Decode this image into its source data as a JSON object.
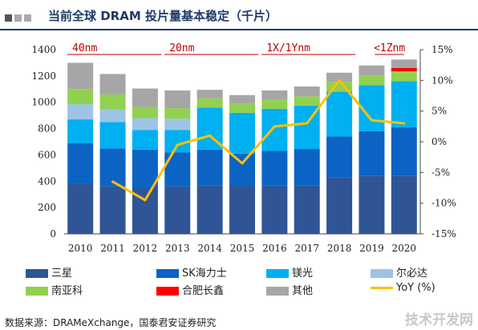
{
  "header": {
    "title": "当前全球 DRAM 投片量基本稳定（千片）"
  },
  "footer": {
    "source": "数据来源：DRAMeXchange，国泰君安证券研究",
    "watermark": "技术开发网"
  },
  "chart_data": {
    "type": "bar",
    "stacked": true,
    "categories": [
      "2010",
      "2011",
      "2012",
      "2013",
      "2014",
      "2015",
      "2016",
      "2017",
      "2018",
      "2019",
      "2020"
    ],
    "ylim": [
      0,
      1400
    ],
    "yticks": [
      "0",
      "200",
      "400",
      "600",
      "800",
      "1000",
      "1200",
      "1400"
    ],
    "y2lim": [
      -15,
      15
    ],
    "y2ticks": [
      "-15%",
      "-10%",
      "-5%",
      "0%",
      "5%",
      "10%",
      "15%"
    ],
    "series": [
      {
        "name": "三星",
        "color": "#2f5597",
        "values": [
          380,
          360,
          350,
          360,
          370,
          365,
          370,
          370,
          430,
          440,
          440
        ]
      },
      {
        "name": "SK海力士",
        "color": "#0b63c4",
        "values": [
          310,
          290,
          290,
          260,
          270,
          245,
          260,
          275,
          310,
          340,
          370
        ]
      },
      {
        "name": "镁光",
        "color": "#00b0f0",
        "values": [
          180,
          200,
          150,
          170,
          320,
          310,
          320,
          330,
          340,
          350,
          350
        ]
      },
      {
        "name": "尔必达",
        "color": "#9dc3e6",
        "values": [
          115,
          95,
          90,
          85,
          0,
          0,
          0,
          0,
          0,
          0,
          0
        ]
      },
      {
        "name": "南亚科",
        "color": "#92d050",
        "values": [
          115,
          115,
          85,
          80,
          70,
          70,
          70,
          70,
          75,
          75,
          75
        ]
      },
      {
        "name": "合肥长鑫",
        "color": "#ff0000",
        "values": [
          0,
          0,
          0,
          0,
          0,
          0,
          0,
          0,
          0,
          0,
          25
        ]
      },
      {
        "name": "其他",
        "color": "#a6a6a6",
        "values": [
          200,
          155,
          140,
          135,
          65,
          65,
          70,
          75,
          70,
          75,
          65
        ]
      }
    ],
    "line": {
      "name": "YoY (%)",
      "color": "#ffc000",
      "values": [
        null,
        -6.5,
        -9.5,
        -0.5,
        1,
        -3.5,
        2.5,
        3,
        10,
        3.5,
        3
      ]
    },
    "eras": [
      {
        "label": "40nm"
      },
      {
        "label": "20nm"
      },
      {
        "label": "1X/1Ynm"
      },
      {
        "label": "<1Znm"
      }
    ],
    "legend": [
      {
        "label": "三星",
        "color": "#2f5597",
        "kind": "bar"
      },
      {
        "label": "SK海力士",
        "color": "#0b63c4",
        "kind": "bar"
      },
      {
        "label": "镁光",
        "color": "#00b0f0",
        "kind": "bar"
      },
      {
        "label": "尔必达",
        "color": "#9dc3e6",
        "kind": "bar"
      },
      {
        "label": "南亚科",
        "color": "#92d050",
        "kind": "bar"
      },
      {
        "label": "合肥长鑫",
        "color": "#ff0000",
        "kind": "bar"
      },
      {
        "label": "其他",
        "color": "#a6a6a6",
        "kind": "bar"
      },
      {
        "label": "YoY (%)",
        "color": "#ffc000",
        "kind": "line"
      }
    ]
  }
}
